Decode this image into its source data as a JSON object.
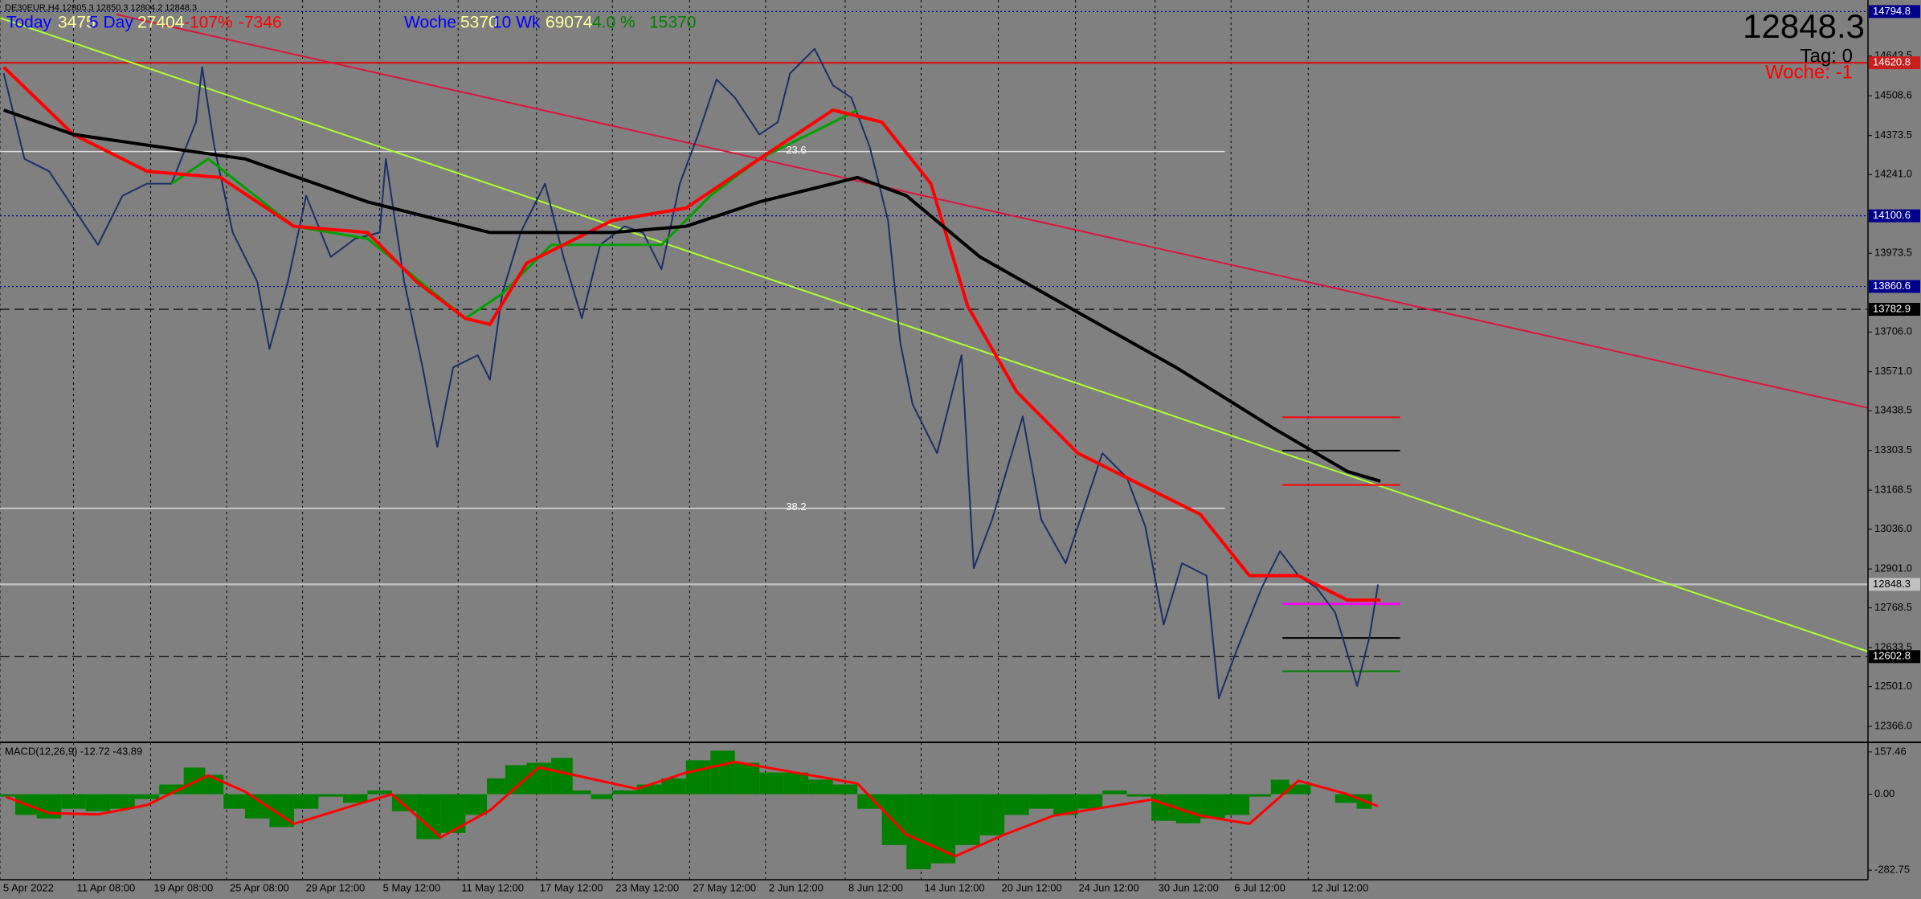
{
  "chart_data": [
    {
      "type": "price",
      "symbol_info": "DE30EUR,H4  12805.3 12850.3 12804.2 12848.3",
      "info": [
        {
          "text": "Today",
          "color": "#0000ff"
        },
        {
          "text": "3475",
          "color": "#ffff99"
        },
        {
          "text": "5 Day",
          "color": "#0000ff"
        },
        {
          "text": "27404",
          "color": "#ffff99"
        },
        {
          "text": "-107%",
          "color": "#ff0000"
        },
        {
          "text": "-7346",
          "color": "#ff0000"
        },
        {
          "text": "Woche",
          "color": "#0000ff"
        },
        {
          "text": "5370",
          "color": "#ffff99"
        },
        {
          "text": "10 Wk",
          "color": "#0000ff"
        },
        {
          "text": "69074",
          "color": "#ffff99"
        },
        {
          "text": "4.0 %",
          "color": "#008000"
        },
        {
          "text": "15370",
          "color": "#008000"
        }
      ],
      "price_display": "12848.3",
      "tag": "Tag: 0",
      "woche": "Woche: -1",
      "woche_color": "#ff0000",
      "background": "#808080",
      "grid": true,
      "xlim": [
        0,
        1525
      ],
      "xticks": [
        {
          "value": 0,
          "label": "5 Apr 2022"
        },
        {
          "value": 60,
          "label": "11 Apr 08:00"
        },
        {
          "value": 123,
          "label": "19 Apr 08:00"
        },
        {
          "value": 185,
          "label": "25 Apr 08:00"
        },
        {
          "value": 247,
          "label": "29 Apr 12:00"
        },
        {
          "value": 310,
          "label": "5 May 12:00"
        },
        {
          "value": 374,
          "label": "11 May 12:00"
        },
        {
          "value": 438,
          "label": "17 May 12:00"
        },
        {
          "value": 500,
          "label": "23 May 12:00"
        },
        {
          "value": 563,
          "label": "27 May 12:00"
        },
        {
          "value": 625,
          "label": "2 Jun 12:00"
        },
        {
          "value": 690,
          "label": "8 Jun 12:00"
        },
        {
          "value": 752,
          "label": "14 Jun 12:00"
        },
        {
          "value": 815,
          "label": "20 Jun 12:00"
        },
        {
          "value": 878,
          "label": "24 Jun 12:00"
        },
        {
          "value": 943,
          "label": "30 Jun 12:00"
        },
        {
          "value": 1005,
          "label": "6 Jul 12:00"
        },
        {
          "value": 1068,
          "label": "12 Jul 12:00"
        }
      ],
      "ylim": [
        12317,
        14834
      ],
      "yticks": [
        {
          "value": 12366,
          "label": "12366.0"
        },
        {
          "value": 12501,
          "label": "12501.0"
        },
        12633.5,
        12768.5,
        {
          "value": 12901,
          "label": "12901.0"
        },
        {
          "value": 13036,
          "label": "13036.0"
        },
        13168.5,
        13303.5,
        13438.5,
        {
          "value": 13571,
          "label": "13571.0"
        },
        {
          "value": 13706,
          "label": "13706.0"
        },
        13973.5,
        {
          "value": 14241,
          "label": "14241.0"
        },
        14373.5,
        14508.6,
        14643.5
      ],
      "levels": [
        {
          "value": 14794.8,
          "color": "#00008b",
          "style": "dotted"
        },
        {
          "value": 14620.8,
          "color": "#c81e1e",
          "style": "solid"
        },
        {
          "value": 14100.6,
          "color": "#00008b",
          "style": "dotted"
        },
        {
          "value": 13860.6,
          "color": "#00008b",
          "style": "dotted"
        },
        {
          "value": 13782.9,
          "color": "#000000",
          "style": "dashed"
        },
        {
          "value": 12848.3,
          "color": "#c0c0c0",
          "style": "solid"
        },
        {
          "value": 12602.8,
          "color": "#000000",
          "style": "dashed"
        }
      ],
      "fib_levels": [
        {
          "value": 14319,
          "label": "23.6"
        },
        {
          "value": 13107,
          "label": "38.2"
        }
      ],
      "fib_color": "#dcdcdc",
      "trendlines": [
        {
          "x": [
            0,
            1525
          ],
          "y": [
            14773,
            12620
          ],
          "color": "#adff2f"
        },
        {
          "x": [
            95,
            1525
          ],
          "y": [
            14785,
            13448
          ],
          "color": "#dc143c"
        }
      ],
      "segment_x": [
        1047,
        1143
      ],
      "segments": [
        {
          "value": 13416,
          "color": "#ff0000"
        },
        {
          "value": 13303,
          "color": "#000000"
        },
        {
          "value": 13186,
          "color": "#ff0000"
        },
        {
          "value": 12782,
          "color": "#ff00ff"
        },
        {
          "value": 12666,
          "color": "#000000"
        },
        {
          "value": 12553,
          "color": "#008000"
        }
      ],
      "series": [
        {
          "name": "Close",
          "color": "#1c2f66",
          "width": 2,
          "x": [
            3,
            20,
            40,
            60,
            80,
            100,
            120,
            140,
            160,
            165,
            175,
            190,
            210,
            220,
            235,
            250,
            270,
            290,
            310,
            315,
            330,
            345,
            357,
            370,
            390,
            400,
            410,
            425,
            445,
            460,
            475,
            490,
            510,
            525,
            540,
            555,
            570,
            585,
            600,
            620,
            635,
            645,
            665,
            680,
            695,
            710,
            725,
            735,
            745,
            765,
            785,
            795,
            810,
            835,
            850,
            870,
            880,
            900,
            920,
            935,
            950,
            965,
            985,
            995,
            1010,
            1030,
            1045,
            1060,
            1075,
            1090,
            1108,
            1118,
            1125
          ],
          "values": [
            14585,
            14294,
            14252,
            14127,
            14002,
            14169,
            14210,
            14210,
            14419,
            14606,
            14335,
            14044,
            13877,
            13648,
            13877,
            14169,
            13961,
            14023,
            14044,
            14294,
            13877,
            13586,
            13315,
            13586,
            13627,
            13544,
            13836,
            14044,
            14210,
            13961,
            13752,
            14002,
            14065,
            14044,
            13919,
            14210,
            14377,
            14564,
            14502,
            14377,
            14419,
            14585,
            14668,
            14544,
            14502,
            14335,
            14085,
            13669,
            13461,
            13294,
            13627,
            12903,
            13069,
            13419,
            13069,
            12920,
            13045,
            13294,
            13211,
            13045,
            12712,
            12920,
            12878,
            12461,
            12628,
            12836,
            12961,
            12878,
            12836,
            12753,
            12503,
            12669,
            12848
          ]
        },
        {
          "name": "MA Green",
          "color": "#00a000",
          "width": 3,
          "x": [
            140,
            170,
            240,
            300,
            380,
            410,
            450,
            500,
            540,
            580,
            620,
            660,
            700
          ],
          "values": [
            14210,
            14294,
            14065,
            14023,
            13752,
            13836,
            14002,
            14002,
            14002,
            14169,
            14294,
            14377,
            14460
          ]
        },
        {
          "name": "MA Red",
          "color": "#ff0000",
          "width": 4,
          "x": [
            3,
            60,
            120,
            180,
            240,
            300,
            340,
            380,
            400,
            430,
            500,
            560,
            620,
            680,
            720,
            760,
            790,
            830,
            880,
            940,
            980,
            1020,
            1060,
            1100,
            1127
          ],
          "values": [
            14606,
            14377,
            14252,
            14231,
            14065,
            14044,
            13877,
            13752,
            13732,
            13940,
            14085,
            14127,
            14294,
            14460,
            14419,
            14210,
            13794,
            13503,
            13294,
            13169,
            13086,
            12878,
            12878,
            12795,
            12795
          ]
        },
        {
          "name": "MA Black",
          "color": "#000000",
          "width": 4,
          "x": [
            3,
            60,
            130,
            200,
            300,
            400,
            500,
            560,
            620,
            700,
            740,
            800,
            880,
            960,
            1040,
            1100,
            1127
          ],
          "values": [
            14460,
            14377,
            14335,
            14294,
            14148,
            14044,
            14044,
            14065,
            14148,
            14231,
            14169,
            13961,
            13773,
            13586,
            13378,
            13232,
            13199
          ]
        }
      ]
    },
    {
      "type": "macd",
      "indicator_label": "MACD(12,26,9) -12.72 -43.89",
      "ylim": [
        -318,
        187
      ],
      "yticks": [
        157.46,
        {
          "value": 0,
          "label": "0.00"
        },
        -282.75
      ],
      "histogram": {
        "color": "#008000",
        "x": [
          5,
          20,
          40,
          60,
          80,
          100,
          120,
          140,
          160,
          175,
          190,
          210,
          230,
          250,
          270,
          290,
          310,
          330,
          350,
          370,
          390,
          405,
          420,
          440,
          460,
          475,
          490,
          510,
          530,
          550,
          570,
          590,
          610,
          630,
          650,
          670,
          690,
          710,
          730,
          750,
          770,
          790,
          810,
          830,
          850,
          870,
          890,
          910,
          930,
          950,
          970,
          990,
          1010,
          1030,
          1045,
          1060,
          1080,
          1100,
          1115,
          1125
        ],
        "values": [
          -9,
          -77,
          -90,
          -54,
          -63,
          -54,
          -18,
          36,
          99,
          72,
          -54,
          -90,
          -122,
          -54,
          -9,
          -32,
          14,
          -63,
          -167,
          -144,
          -77,
          59,
          108,
          117,
          135,
          14,
          -18,
          14,
          36,
          59,
          126,
          162,
          117,
          81,
          81,
          54,
          36,
          -54,
          -189,
          -279,
          -257,
          -189,
          -153,
          -77,
          -54,
          -77,
          -54,
          14,
          -9,
          -99,
          -108,
          -90,
          -77,
          -9,
          54,
          36,
          0,
          -32,
          -54,
          0
        ]
      },
      "signal": {
        "color": "#ff0000",
        "x": [
          5,
          40,
          80,
          120,
          170,
          200,
          240,
          290,
          320,
          360,
          400,
          440,
          480,
          520,
          560,
          600,
          650,
          700,
          740,
          780,
          820,
          860,
          900,
          940,
          980,
          1020,
          1060,
          1100,
          1125
        ],
        "values": [
          -10,
          -70,
          -75,
          -40,
          70,
          10,
          -110,
          -40,
          0,
          -160,
          -60,
          100,
          60,
          20,
          80,
          120,
          80,
          40,
          -150,
          -230,
          -150,
          -80,
          -50,
          -20,
          -80,
          -110,
          50,
          0,
          -45
        ]
      }
    }
  ]
}
